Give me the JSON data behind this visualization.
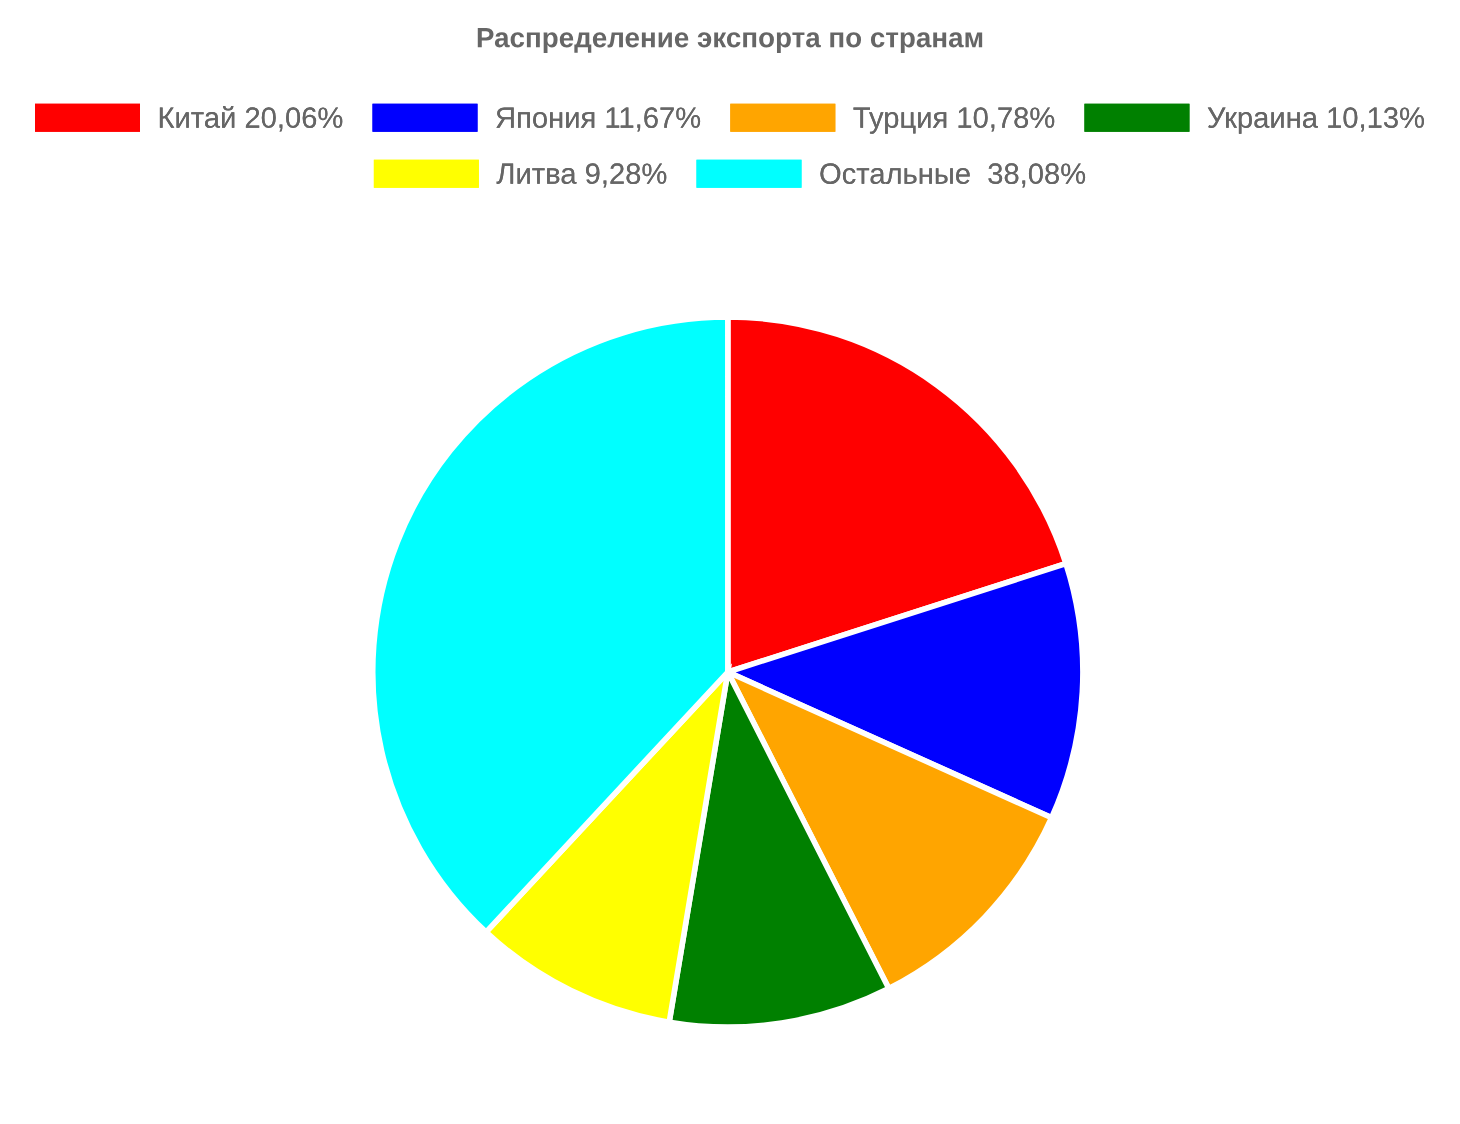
{
  "chart_data": {
    "type": "pie",
    "title": "Распределение экспорта по странам",
    "categories": [
      "Китай 20,06%",
      "Япония 11,67%",
      "Турция 10,78%",
      "Украина 10,13%",
      "Литва 9,28%",
      "Остальные  38,08%"
    ],
    "values": [
      20.06,
      11.67,
      10.78,
      10.13,
      9.28,
      38.08
    ],
    "colors": [
      "#ff0000",
      "#0000ff",
      "#ffa500",
      "#008000",
      "#ffff00",
      "#00ffff"
    ],
    "legend": "top"
  }
}
